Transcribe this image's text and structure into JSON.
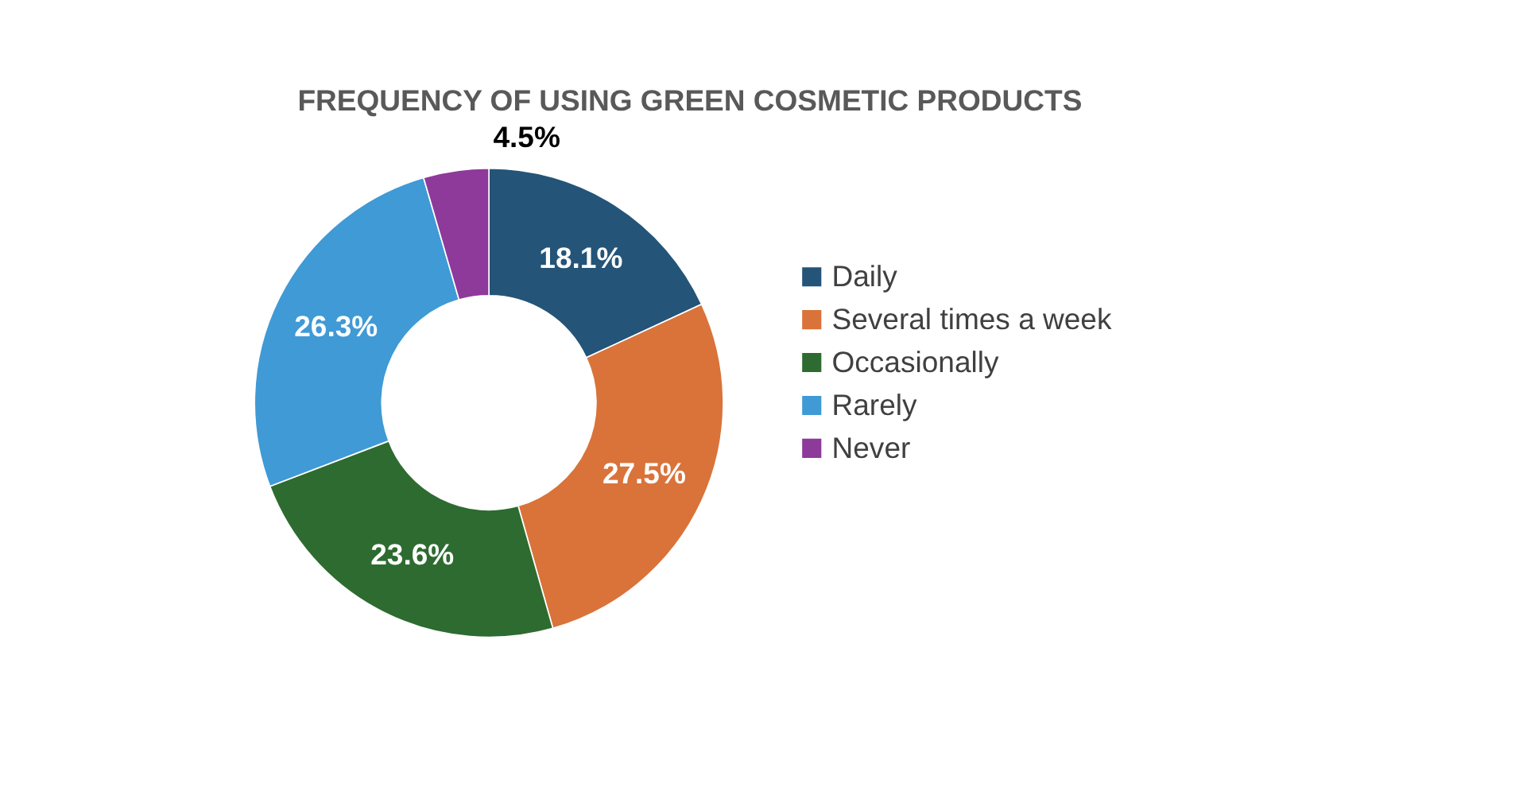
{
  "chart_data": {
    "type": "donut",
    "title": "FREQUENCY OF USING GREEN COSMETIC PRODUCTS",
    "categories": [
      "Daily",
      "Several times a week",
      "Occasionally",
      "Rarely",
      "Never"
    ],
    "values": [
      18.1,
      27.5,
      23.6,
      26.3,
      4.5
    ],
    "colors": [
      "#245478",
      "#d9733a",
      "#2e6b30",
      "#3f9ad6",
      "#8e3a9a"
    ],
    "value_labels": [
      "18.1%",
      "27.5%",
      "23.6%",
      "26.3%",
      "4.5%"
    ],
    "legend": "right"
  }
}
